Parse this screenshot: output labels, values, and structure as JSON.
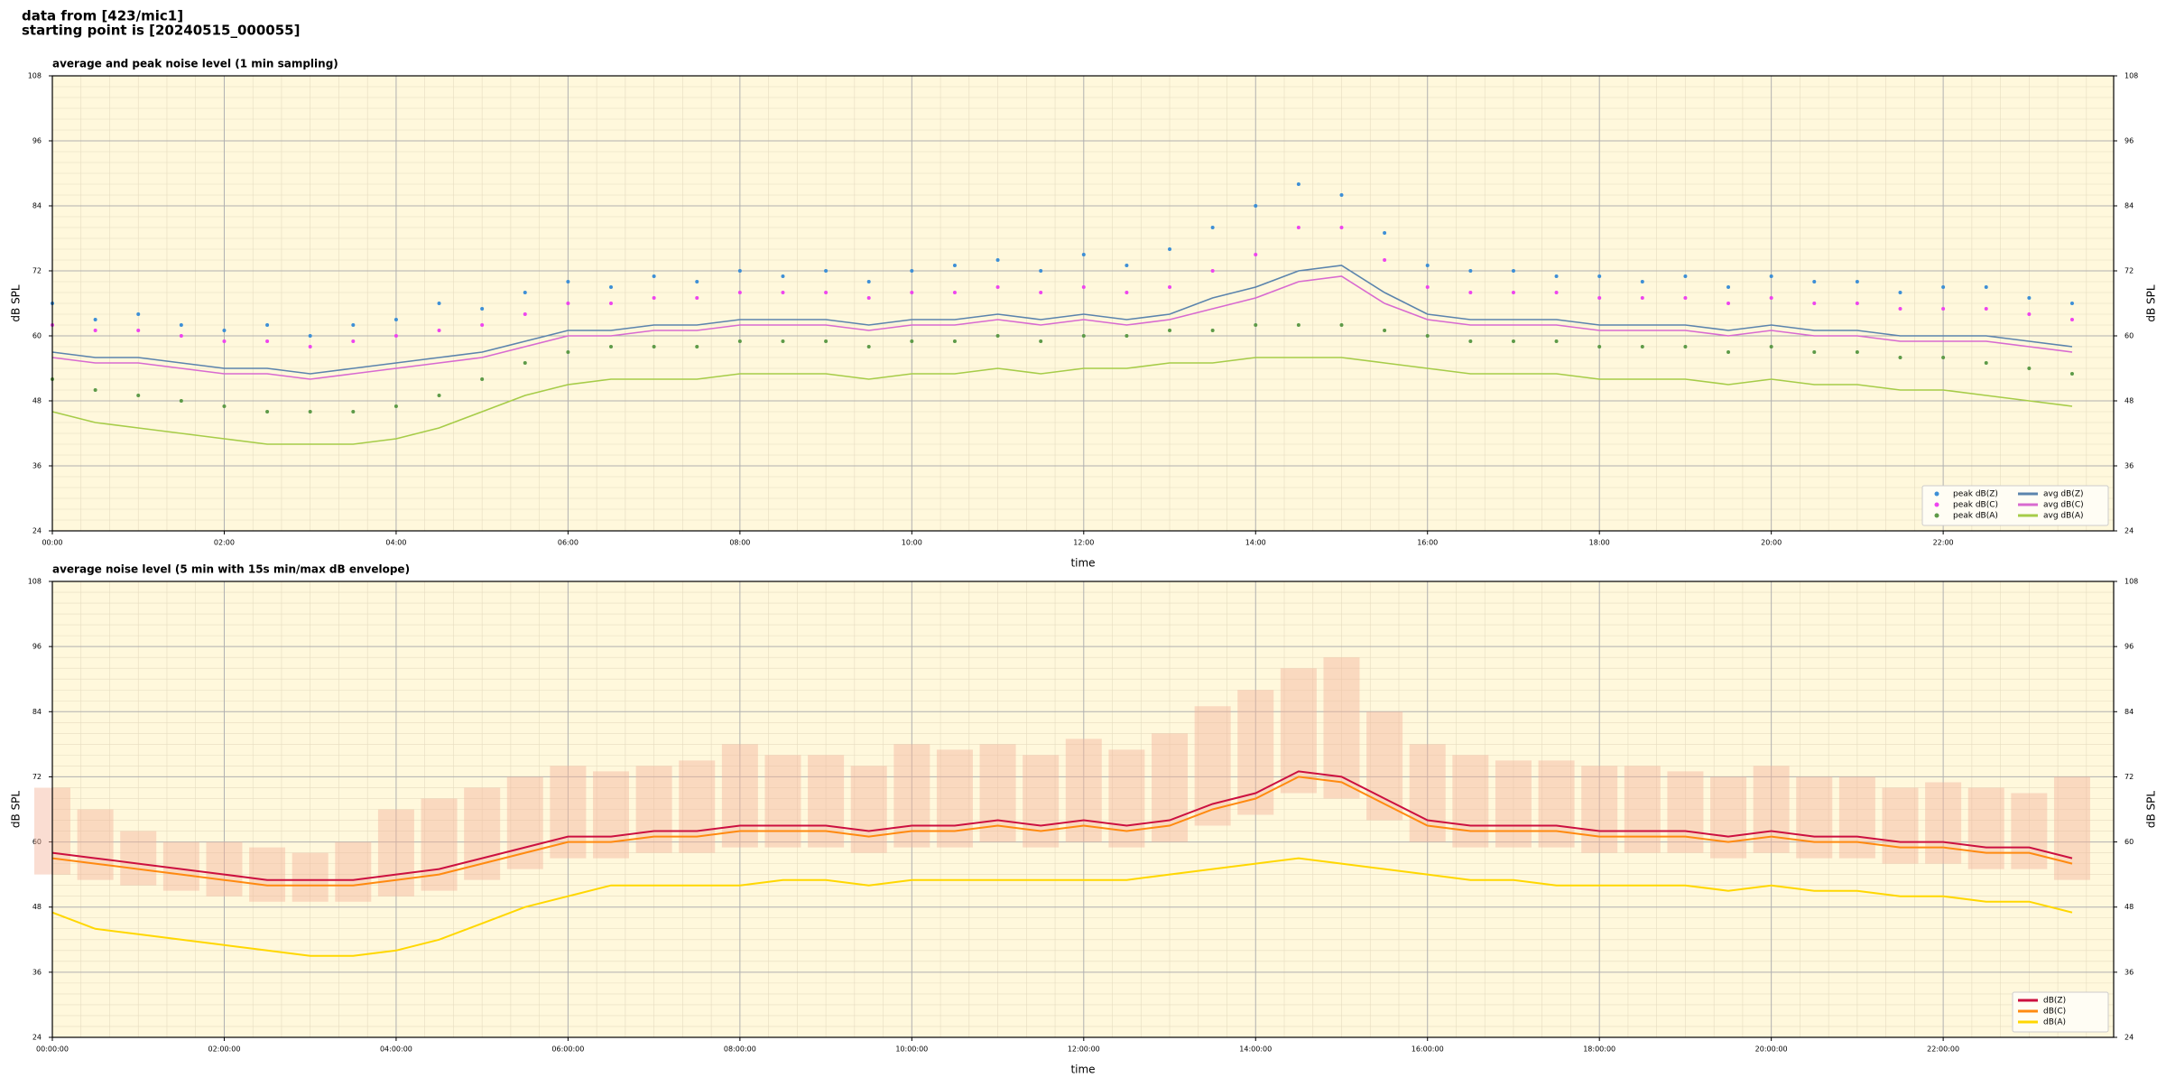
{
  "header": [
    "data from [423/mic1]",
    "starting point is [20240515_000055]"
  ],
  "chart_data": [
    {
      "type": "line",
      "title": "average and peak noise level (1 min sampling)",
      "x_label": "time",
      "y_label": "dB SPL",
      "x": [
        "00:00",
        "00:30",
        "01:00",
        "01:30",
        "02:00",
        "02:30",
        "03:00",
        "03:30",
        "04:00",
        "04:30",
        "05:00",
        "05:30",
        "06:00",
        "06:30",
        "07:00",
        "07:30",
        "08:00",
        "08:30",
        "09:00",
        "09:30",
        "10:00",
        "10:30",
        "11:00",
        "11:30",
        "12:00",
        "12:30",
        "13:00",
        "13:30",
        "14:00",
        "14:30",
        "15:00",
        "15:30",
        "16:00",
        "16:30",
        "17:00",
        "17:30",
        "18:00",
        "18:30",
        "19:00",
        "19:30",
        "20:00",
        "20:30",
        "21:00",
        "21:30",
        "22:00",
        "22:30",
        "23:00",
        "23:30"
      ],
      "xlim": [
        "00:00",
        "23:59"
      ],
      "xticks": [
        "00:00",
        "02:00",
        "04:00",
        "06:00",
        "08:00",
        "10:00",
        "12:00",
        "14:00",
        "16:00",
        "18:00",
        "20:00",
        "22:00"
      ],
      "ylim": [
        24,
        108
      ],
      "yticks": [
        24,
        36,
        48,
        60,
        72,
        84,
        96,
        108
      ],
      "grid": true,
      "legend": "lower right",
      "legend_columns": 2,
      "series": [
        {
          "name": "peak dB(Z)",
          "style": "dots",
          "color": "#3d8fd6",
          "values": [
            66,
            63,
            64,
            62,
            61,
            62,
            60,
            62,
            63,
            66,
            65,
            68,
            70,
            69,
            71,
            70,
            72,
            71,
            72,
            70,
            72,
            73,
            74,
            72,
            75,
            73,
            76,
            80,
            84,
            88,
            86,
            79,
            73,
            72,
            72,
            71,
            71,
            70,
            71,
            69,
            71,
            70,
            70,
            68,
            69,
            69,
            67,
            66
          ]
        },
        {
          "name": "peak dB(C)",
          "style": "dots",
          "color": "#ee44ee",
          "values": [
            62,
            61,
            61,
            60,
            59,
            59,
            58,
            59,
            60,
            61,
            62,
            64,
            66,
            66,
            67,
            67,
            68,
            68,
            68,
            67,
            68,
            68,
            69,
            68,
            69,
            68,
            69,
            72,
            75,
            80,
            80,
            74,
            69,
            68,
            68,
            68,
            67,
            67,
            67,
            66,
            67,
            66,
            66,
            65,
            65,
            65,
            64,
            63
          ]
        },
        {
          "name": "peak dB(A)",
          "style": "dots",
          "color": "#5d9a48",
          "values": [
            52,
            50,
            49,
            48,
            47,
            46,
            46,
            46,
            47,
            49,
            52,
            55,
            57,
            58,
            58,
            58,
            59,
            59,
            59,
            58,
            59,
            59,
            60,
            59,
            60,
            60,
            61,
            61,
            62,
            62,
            62,
            61,
            60,
            59,
            59,
            59,
            58,
            58,
            58,
            57,
            58,
            57,
            57,
            56,
            56,
            55,
            54,
            53
          ]
        },
        {
          "name": "avg dB(Z)",
          "style": "line",
          "color": "#5b84ad",
          "values": [
            57,
            56,
            56,
            55,
            54,
            54,
            53,
            54,
            55,
            56,
            57,
            59,
            61,
            61,
            62,
            62,
            63,
            63,
            63,
            62,
            63,
            63,
            64,
            63,
            64,
            63,
            64,
            67,
            69,
            72,
            73,
            68,
            64,
            63,
            63,
            63,
            62,
            62,
            62,
            61,
            62,
            61,
            61,
            60,
            60,
            60,
            59,
            58
          ]
        },
        {
          "name": "avg dB(C)",
          "style": "line",
          "color": "#d86ad0",
          "values": [
            56,
            55,
            55,
            54,
            53,
            53,
            52,
            53,
            54,
            55,
            56,
            58,
            60,
            60,
            61,
            61,
            62,
            62,
            62,
            61,
            62,
            62,
            63,
            62,
            63,
            62,
            63,
            65,
            67,
            70,
            71,
            66,
            63,
            62,
            62,
            62,
            61,
            61,
            61,
            60,
            61,
            60,
            60,
            59,
            59,
            59,
            58,
            57
          ]
        },
        {
          "name": "avg dB(A)",
          "style": "line",
          "color": "#a6cc48",
          "values": [
            46,
            44,
            43,
            42,
            41,
            40,
            40,
            40,
            41,
            43,
            46,
            49,
            51,
            52,
            52,
            52,
            53,
            53,
            53,
            52,
            53,
            53,
            54,
            53,
            54,
            54,
            55,
            55,
            56,
            56,
            56,
            55,
            54,
            53,
            53,
            53,
            52,
            52,
            52,
            51,
            52,
            51,
            51,
            50,
            50,
            49,
            48,
            47
          ]
        }
      ]
    },
    {
      "type": "line",
      "title": "average noise level (5 min with 15s min/max dB envelope)",
      "x_label": "time",
      "y_label": "dB SPL",
      "x": [
        "00:00:00",
        "00:30:00",
        "01:00:00",
        "01:30:00",
        "02:00:00",
        "02:30:00",
        "03:00:00",
        "03:30:00",
        "04:00:00",
        "04:30:00",
        "05:00:00",
        "05:30:00",
        "06:00:00",
        "06:30:00",
        "07:00:00",
        "07:30:00",
        "08:00:00",
        "08:30:00",
        "09:00:00",
        "09:30:00",
        "10:00:00",
        "10:30:00",
        "11:00:00",
        "11:30:00",
        "12:00:00",
        "12:30:00",
        "13:00:00",
        "13:30:00",
        "14:00:00",
        "14:30:00",
        "15:00:00",
        "15:30:00",
        "16:00:00",
        "16:30:00",
        "17:00:00",
        "17:30:00",
        "18:00:00",
        "18:30:00",
        "19:00:00",
        "19:30:00",
        "20:00:00",
        "20:30:00",
        "21:00:00",
        "21:30:00",
        "22:00:00",
        "22:30:00",
        "23:00:00",
        "23:30:00"
      ],
      "xlim": [
        "00:00:00",
        "23:59:00"
      ],
      "xticks": [
        "00:00:00",
        "02:00:00",
        "04:00:00",
        "06:00:00",
        "08:00:00",
        "10:00:00",
        "12:00:00",
        "14:00:00",
        "16:00:00",
        "18:00:00",
        "20:00:00",
        "22:00:00"
      ],
      "ylim": [
        24,
        108
      ],
      "yticks": [
        24,
        36,
        48,
        60,
        72,
        84,
        96,
        108
      ],
      "grid": true,
      "legend": "lower right",
      "legend_columns": 1,
      "envelope": {
        "color": "#f5b49c",
        "min": [
          54,
          53,
          52,
          51,
          50,
          49,
          49,
          49,
          50,
          51,
          53,
          55,
          57,
          57,
          58,
          58,
          59,
          59,
          59,
          58,
          59,
          59,
          60,
          59,
          60,
          59,
          60,
          63,
          65,
          69,
          68,
          64,
          60,
          59,
          59,
          59,
          58,
          58,
          58,
          57,
          58,
          57,
          57,
          56,
          56,
          55,
          55,
          53
        ],
        "max": [
          70,
          66,
          62,
          60,
          60,
          59,
          58,
          60,
          66,
          68,
          70,
          72,
          74,
          73,
          74,
          75,
          78,
          76,
          76,
          74,
          78,
          77,
          78,
          76,
          79,
          77,
          80,
          85,
          88,
          92,
          94,
          84,
          78,
          76,
          75,
          75,
          74,
          74,
          73,
          72,
          74,
          72,
          72,
          70,
          71,
          70,
          69,
          72
        ]
      },
      "series": [
        {
          "name": "dB(Z)",
          "style": "line",
          "color": "#cc1040",
          "values": [
            58,
            57,
            56,
            55,
            54,
            53,
            53,
            53,
            54,
            55,
            57,
            59,
            61,
            61,
            62,
            62,
            63,
            63,
            63,
            62,
            63,
            63,
            64,
            63,
            64,
            63,
            64,
            67,
            69,
            73,
            72,
            68,
            64,
            63,
            63,
            63,
            62,
            62,
            62,
            61,
            62,
            61,
            61,
            60,
            60,
            59,
            59,
            57
          ]
        },
        {
          "name": "dB(C)",
          "style": "line",
          "color": "#ff8a10",
          "values": [
            57,
            56,
            55,
            54,
            53,
            52,
            52,
            52,
            53,
            54,
            56,
            58,
            60,
            60,
            61,
            61,
            62,
            62,
            62,
            61,
            62,
            62,
            63,
            62,
            63,
            62,
            63,
            66,
            68,
            72,
            71,
            67,
            63,
            62,
            62,
            62,
            61,
            61,
            61,
            60,
            61,
            60,
            60,
            59,
            59,
            58,
            58,
            56
          ]
        },
        {
          "name": "dB(A)",
          "style": "line",
          "color": "#ffd700",
          "values": [
            47,
            44,
            43,
            42,
            41,
            40,
            39,
            39,
            40,
            42,
            45,
            48,
            50,
            52,
            52,
            52,
            52,
            53,
            53,
            52,
            53,
            53,
            53,
            53,
            53,
            53,
            54,
            55,
            56,
            57,
            56,
            55,
            54,
            53,
            53,
            52,
            52,
            52,
            52,
            51,
            52,
            51,
            51,
            50,
            50,
            49,
            49,
            47
          ]
        }
      ]
    }
  ]
}
